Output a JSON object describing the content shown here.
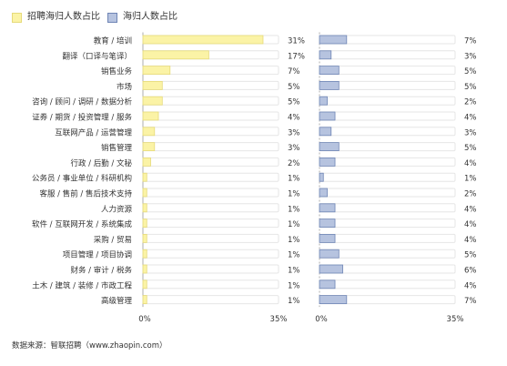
{
  "legend": [
    {
      "label": "招聘海归人数占比",
      "color": "#fbf3a6",
      "border": "#e6da7a"
    },
    {
      "label": "海归人数占比",
      "color": "#b6c3df",
      "border": "#6f85b5"
    }
  ],
  "source_note": "数据来源：智联招聘（www.zhaopin.com）",
  "chart_data": {
    "type": "bar",
    "orientation": "horizontal",
    "categories": [
      "教育 / 培训",
      "翻译（口译与笔译）",
      "销售业务",
      "市场",
      "咨询 / 顾问 / 调研 / 数据分析",
      "证券 / 期货 / 投资管理 / 服务",
      "互联网产品 / 运营管理",
      "销售管理",
      "行政 / 后勤 / 文秘",
      "公务员 / 事业单位 / 科研机构",
      "客服 / 售前 / 售后技术支持",
      "人力资源",
      "软件 / 互联网开发 / 系统集成",
      "采购 / 贸易",
      "项目管理 / 项目协调",
      "财务 / 审计 / 税务",
      "土木 / 建筑 / 装修 / 市政工程",
      "高级管理"
    ],
    "series": [
      {
        "name": "招聘海归人数占比",
        "color": "#fbf3a6",
        "border": "#e6da7a",
        "values": [
          31,
          17,
          7,
          5,
          5,
          4,
          3,
          3,
          2,
          1,
          1,
          1,
          1,
          1,
          1,
          1,
          1,
          1
        ],
        "labels": [
          "31%",
          "17%",
          "7%",
          "5%",
          "5%",
          "4%",
          "3%",
          "3%",
          "2%",
          "1%",
          "1%",
          "1%",
          "1%",
          "1%",
          "1%",
          "1%",
          "1%",
          "1%"
        ]
      },
      {
        "name": "海归人数占比",
        "color": "#b6c3df",
        "border": "#6f85b5",
        "values": [
          7,
          3,
          5,
          5,
          2,
          4,
          3,
          5,
          4,
          1,
          2,
          4,
          4,
          4,
          5,
          6,
          4,
          7
        ],
        "labels": [
          "7%",
          "3%",
          "5%",
          "5%",
          "2%",
          "4%",
          "3%",
          "5%",
          "4%",
          "1%",
          "2%",
          "4%",
          "4%",
          "4%",
          "5%",
          "6%",
          "4%",
          "7%"
        ]
      }
    ],
    "xlim": [
      0,
      35
    ],
    "x_tick_labels": [
      "0%",
      "35%"
    ],
    "track_color": "#e6e6e6",
    "grid": false,
    "legend_position": "top-left"
  }
}
